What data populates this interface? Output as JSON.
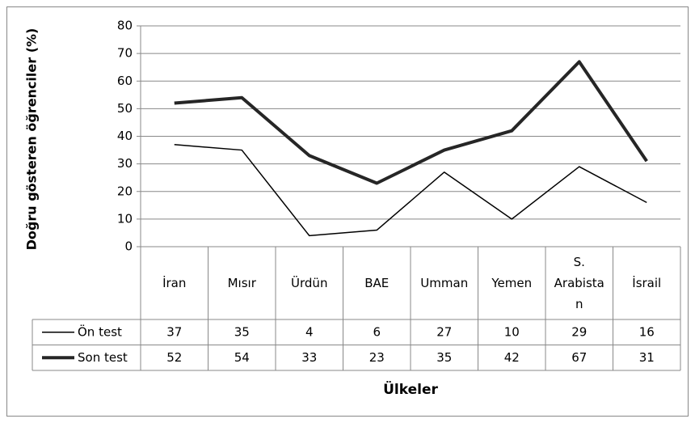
{
  "chart_data": {
    "type": "line",
    "ylabel": "Doğru gösteren öğrenciler (%)",
    "xlabel": "Ülkeler",
    "categories": [
      "İran",
      "Mısır",
      "Ürdün",
      "BAE",
      "Umman",
      "Yemen",
      "S. Arabistan",
      "İsrail"
    ],
    "series": [
      {
        "name": "Ön test",
        "color": "#000000",
        "values": [
          37,
          35,
          4,
          6,
          27,
          10,
          29,
          16
        ]
      },
      {
        "name": "Son test",
        "color": "#262626",
        "values": [
          52,
          54,
          33,
          23,
          35,
          42,
          67,
          31
        ]
      }
    ],
    "ylim": [
      0,
      80
    ],
    "yticks": [
      0,
      10,
      20,
      30,
      40,
      50,
      60,
      70,
      80
    ],
    "grid": true
  }
}
